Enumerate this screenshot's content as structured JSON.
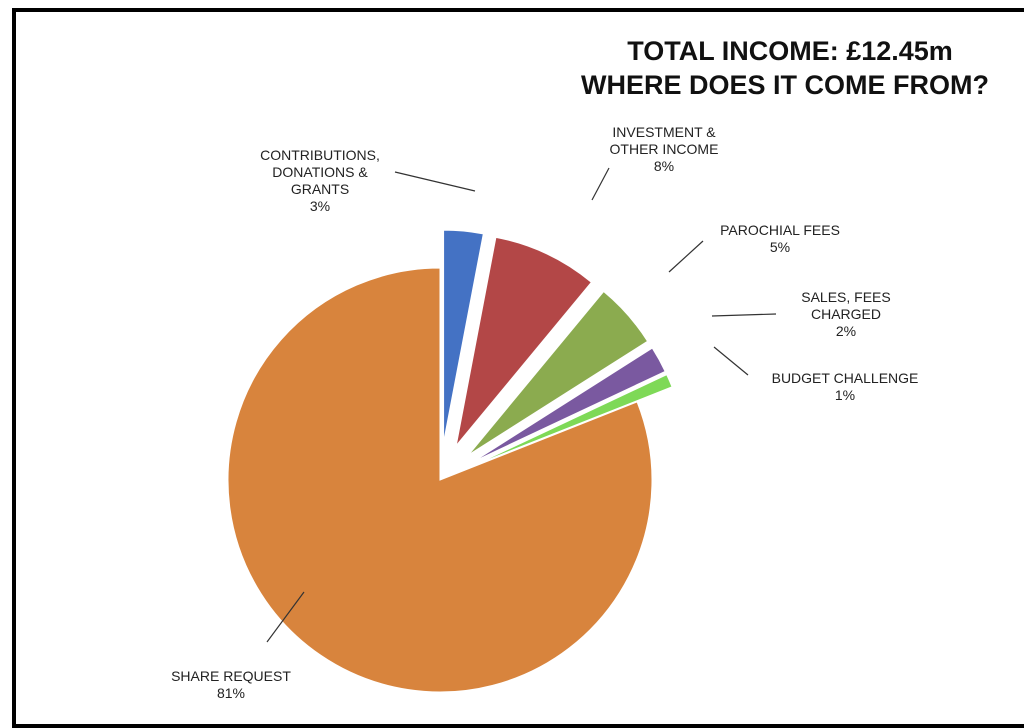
{
  "chart_data": {
    "type": "pie",
    "title": "TOTAL INCOME: £12.45m",
    "subtitle": "WHERE DOES IT COME FROM?",
    "slices": [
      {
        "key": "contributions",
        "label_lines": [
          "CONTRIBUTIONS,",
          "DONATIONS &",
          "GRANTS"
        ],
        "value": 3,
        "value_label": "3%",
        "color": "#4472c4"
      },
      {
        "key": "investment",
        "label_lines": [
          "INVESTMENT &",
          "OTHER INCOME"
        ],
        "value": 8,
        "value_label": "8%",
        "color": "#b34747"
      },
      {
        "key": "parochial",
        "label_lines": [
          "PAROCHIAL FEES"
        ],
        "value": 5,
        "value_label": "5%",
        "color": "#8bab4f"
      },
      {
        "key": "sales",
        "label_lines": [
          "SALES, FEES",
          "CHARGED"
        ],
        "value": 2,
        "value_label": "2%",
        "color": "#7a59a0"
      },
      {
        "key": "budget",
        "label_lines": [
          "BUDGET CHALLENGE"
        ],
        "value": 1,
        "value_label": "1%",
        "color": "#7ed957"
      },
      {
        "key": "share",
        "label_lines": [
          "SHARE REQUEST"
        ],
        "value": 81,
        "value_label": "81%",
        "color": "#d8843d"
      }
    ]
  }
}
